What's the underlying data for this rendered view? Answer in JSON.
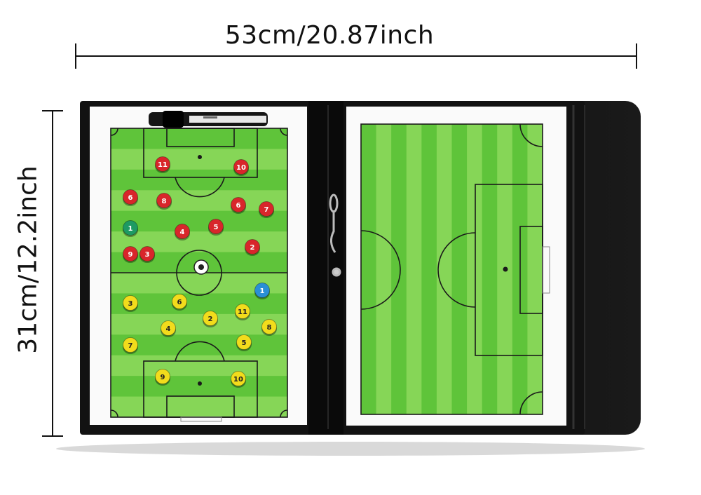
{
  "dimensions": {
    "width_label": "53cm/20.87inch",
    "height_label": "31cm/12.2inch"
  },
  "colors": {
    "grass_dark": "#5fc43a",
    "grass_light": "#86d657",
    "line": "#1a1a1a",
    "case": "#111111",
    "red_magnet": "#d8262b",
    "yellow_magnet": "#f2dc1c",
    "green_magnet": "#1e9a63",
    "blue_magnet": "#2a8fd6"
  },
  "magnets": {
    "red": [
      "11",
      "10",
      "6",
      "8",
      "6",
      "7",
      "4",
      "5",
      "3",
      "2",
      "9"
    ],
    "green": [
      "1"
    ],
    "yellow": [
      "3",
      "6",
      "2",
      "11",
      "4",
      "8",
      "7",
      "5",
      "9",
      "10"
    ],
    "blue": [
      "1"
    ]
  }
}
